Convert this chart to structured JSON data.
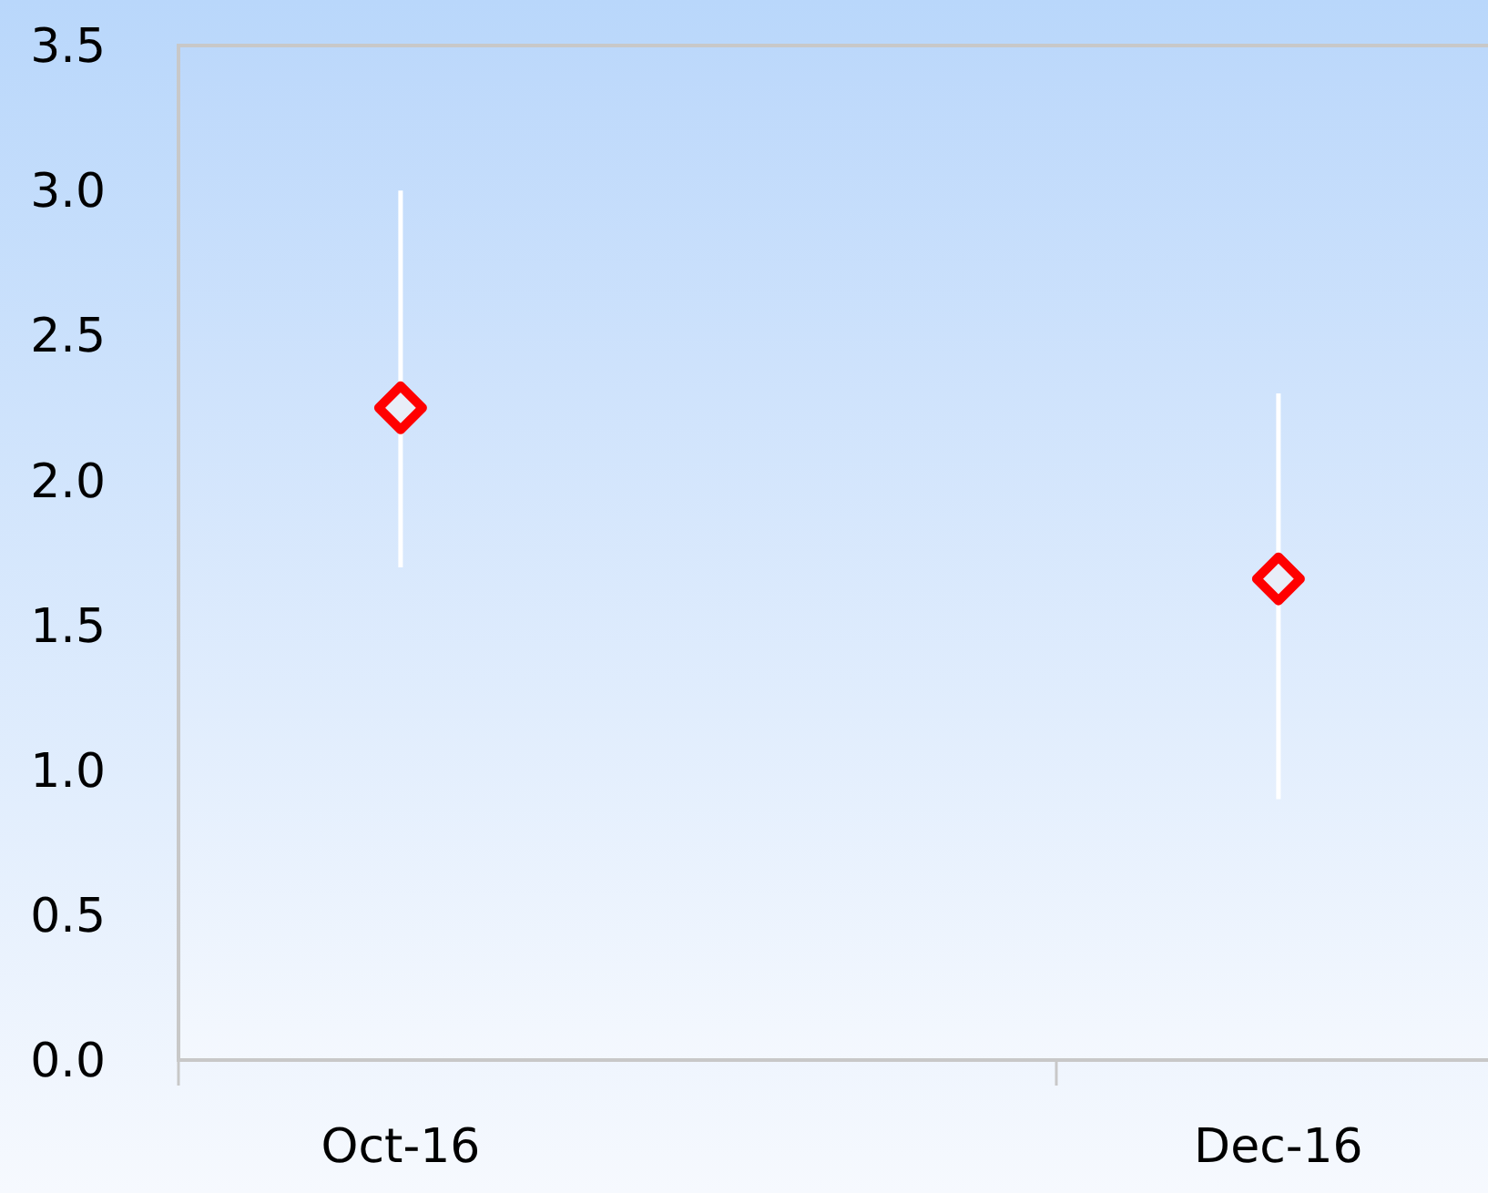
{
  "chart_data": {
    "type": "scatter",
    "categories": [
      "Oct-16",
      "Dec-16"
    ],
    "series": [
      {
        "color": "#ff0000",
        "values": [
          2.25,
          1.66
        ],
        "errors": [
          [
            1.7,
            3.0
          ],
          [
            0.9,
            2.3
          ]
        ]
      }
    ],
    "marker": "diamond",
    "ylim": [
      0,
      3.5
    ],
    "yticks": [
      {
        "value": 0,
        "label": "0.0"
      },
      {
        "value": 0.5,
        "label": "0.5"
      },
      {
        "value": 1,
        "label": "1.0"
      },
      {
        "value": 1.5,
        "label": "1.5"
      },
      {
        "value": 2,
        "label": "2.0"
      },
      {
        "value": 2.5,
        "label": "2.5"
      },
      {
        "value": 3,
        "label": "3.0"
      },
      {
        "value": 3.5,
        "label": "3.5"
      }
    ],
    "grid": false
  }
}
